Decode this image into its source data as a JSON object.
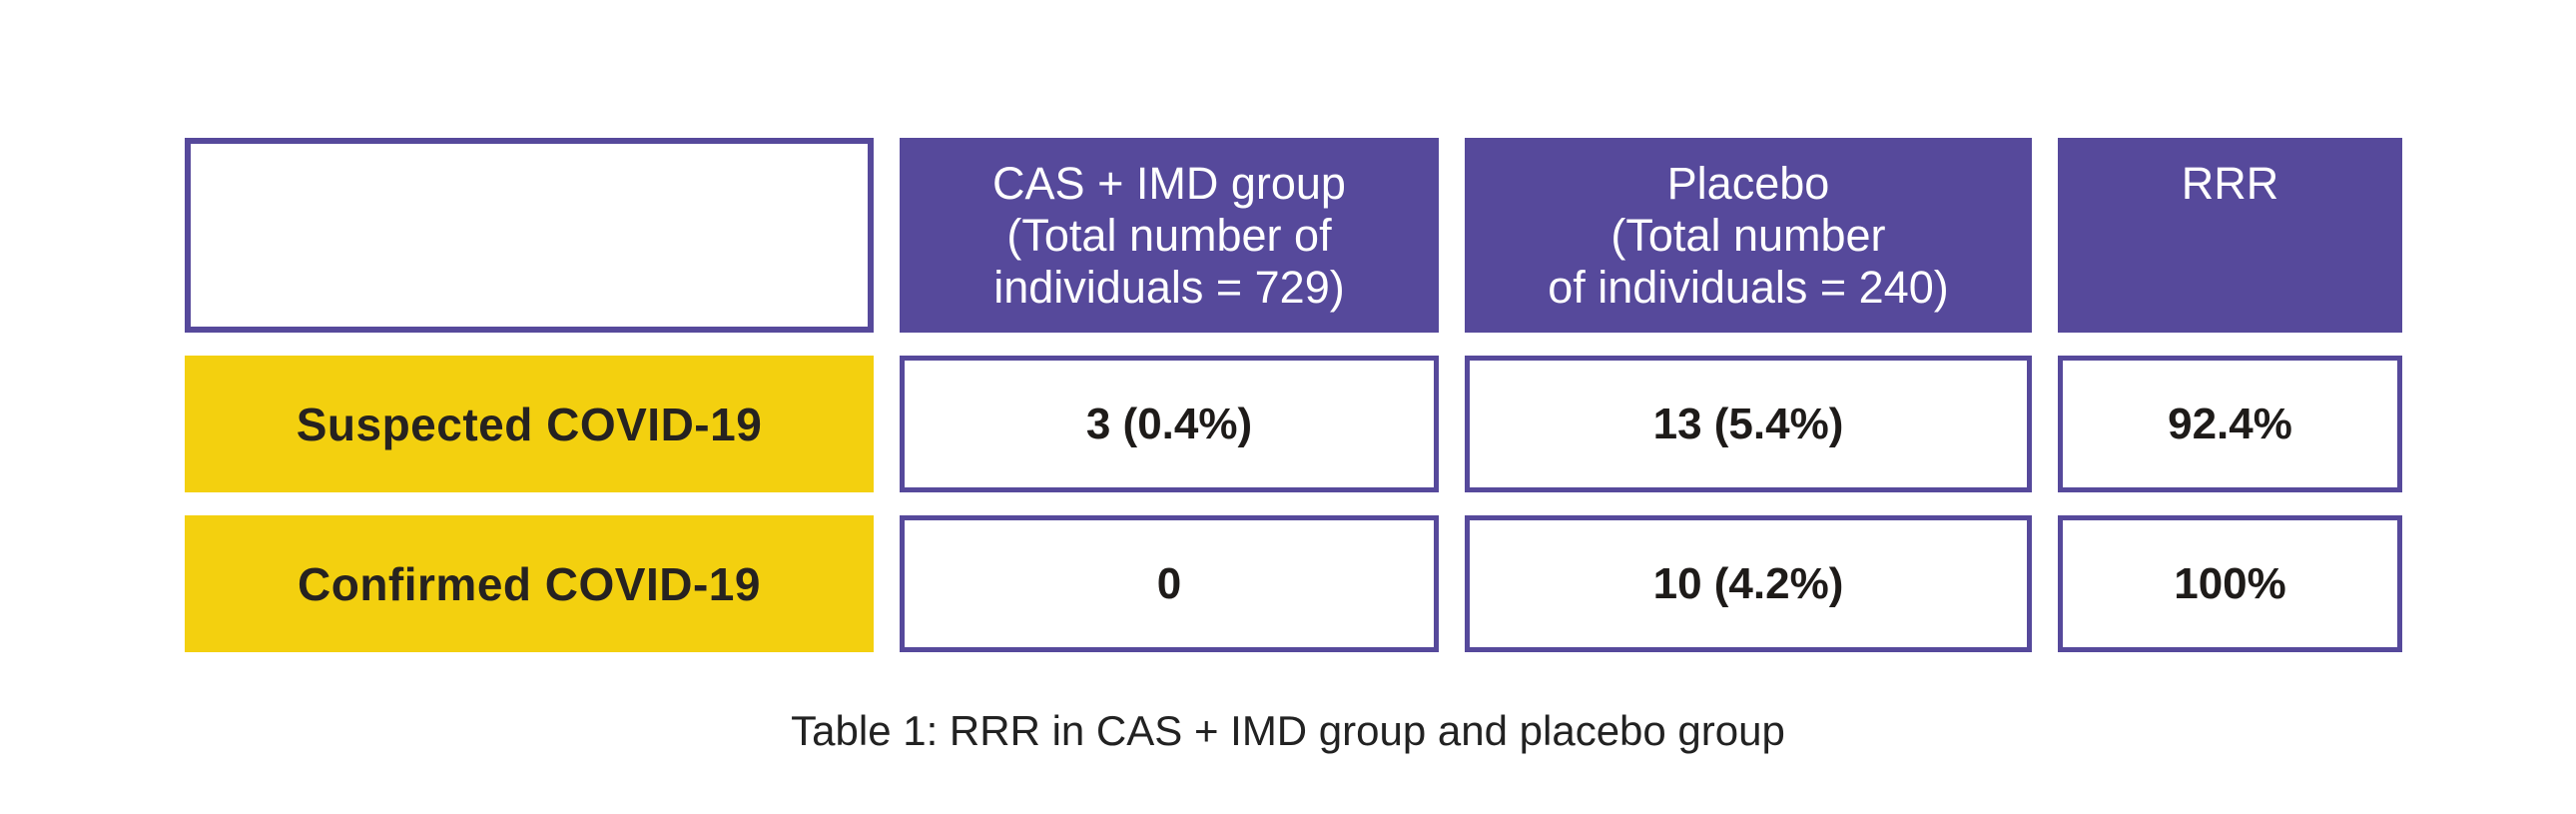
{
  "table": {
    "columns": [
      {
        "label": ""
      },
      {
        "label": "CAS + IMD group\n(Total number of\nindividuals = 729)"
      },
      {
        "label": "Placebo\n(Total number\nof individuals = 240)"
      },
      {
        "label": "RRR"
      }
    ],
    "rows": [
      {
        "label": "Suspected COVID-19",
        "cas_imd": "3 (0.4%)",
        "placebo": "13 (5.4%)",
        "rrr": "92.4%"
      },
      {
        "label": "Confirmed COVID-19",
        "cas_imd": "0",
        "placebo": "10 (4.2%)",
        "rrr": "100%"
      }
    ],
    "caption": "Table 1: RRR in CAS + IMD group and placebo group"
  },
  "colors": {
    "purple": "#56499B",
    "yellow": "#F3D00F",
    "header_text": "#FFFFFF",
    "body_text": "#262220"
  },
  "chart_data": {
    "type": "table",
    "title": "Table 1: RRR in CAS + IMD group and placebo group",
    "columns": [
      "",
      "CAS + IMD group (Total number of individuals = 729)",
      "Placebo (Total number of individuals = 240)",
      "RRR"
    ],
    "rows": [
      [
        "Suspected COVID-19",
        "3 (0.4%)",
        "13 (5.4%)",
        "92.4%"
      ],
      [
        "Confirmed COVID-19",
        "0",
        "10 (4.2%)",
        "100%"
      ]
    ],
    "group_totals": {
      "cas_imd": 729,
      "placebo": 240
    },
    "values": {
      "suspected": {
        "cas_imd_n": 3,
        "cas_imd_pct": 0.4,
        "placebo_n": 13,
        "placebo_pct": 5.4,
        "rrr_pct": 92.4
      },
      "confirmed": {
        "cas_imd_n": 0,
        "placebo_n": 10,
        "placebo_pct": 4.2,
        "rrr_pct": 100
      }
    }
  }
}
